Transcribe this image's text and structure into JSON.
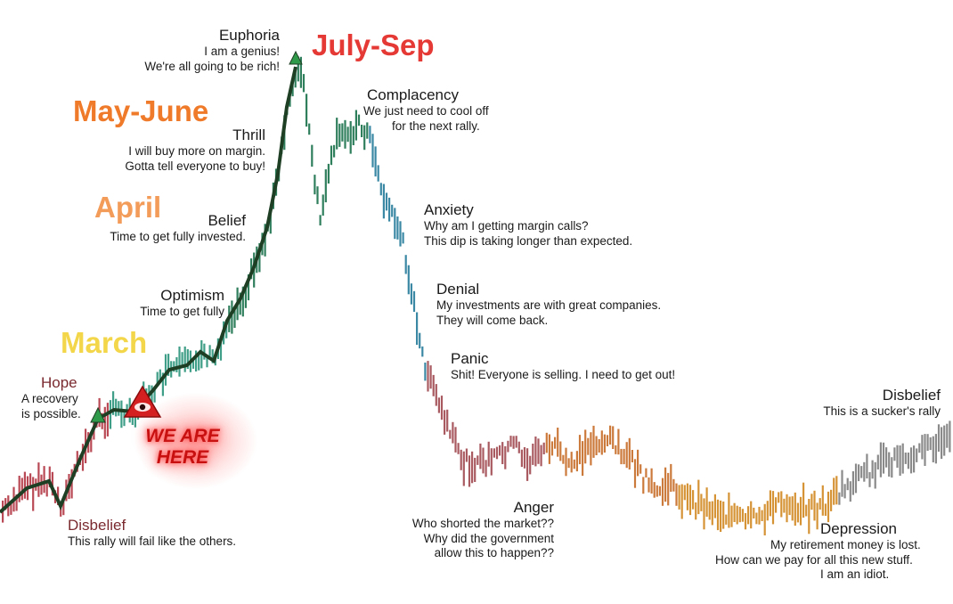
{
  "stages": [
    {
      "id": "hope",
      "name": "Hope",
      "lines": [
        "A recovery",
        "is possible."
      ]
    },
    {
      "id": "disbelief1",
      "name": "Disbelief",
      "lines": [
        "This rally will fail like the others."
      ]
    },
    {
      "id": "optimism",
      "name": "Optimism",
      "lines": [
        "Time to get fully"
      ]
    },
    {
      "id": "belief",
      "name": "Belief",
      "lines": [
        "Time to get fully invested."
      ]
    },
    {
      "id": "thrill",
      "name": "Thrill",
      "lines": [
        "I will buy more on margin.",
        "Gotta tell everyone to buy!"
      ]
    },
    {
      "id": "euphoria",
      "name": "Euphoria",
      "lines": [
        "I am a genius!",
        "We're all going to be rich!"
      ]
    },
    {
      "id": "complacency",
      "name": "Complacency",
      "lines": [
        "We just need to cool off",
        "for the next rally."
      ]
    },
    {
      "id": "anxiety",
      "name": "Anxiety",
      "lines": [
        "Why am I getting margin calls?",
        "This dip is taking longer than expected."
      ]
    },
    {
      "id": "denial",
      "name": "Denial",
      "lines": [
        "My investments are with great companies.",
        "They will come back."
      ]
    },
    {
      "id": "panic",
      "name": "Panic",
      "lines": [
        "Shit! Everyone is selling. I need to get out!"
      ]
    },
    {
      "id": "anger",
      "name": "Anger",
      "lines": [
        "Who shorted the market??",
        "Why did the government",
        "allow this to happen??"
      ]
    },
    {
      "id": "depression",
      "name": "Depression",
      "lines": [
        "My retirement money is lost.",
        "How can we pay for all this new stuff.",
        "I am an idiot."
      ]
    },
    {
      "id": "disbelief2",
      "name": "Disbelief",
      "lines": [
        "This is a sucker's rally"
      ]
    }
  ],
  "months": [
    {
      "id": "march",
      "label": "March",
      "color": "#f3d64a"
    },
    {
      "id": "april",
      "label": "April",
      "color": "#f39c5a"
    },
    {
      "id": "may_june",
      "label": "May-June",
      "color": "#ef7a2a"
    },
    {
      "id": "july_sep",
      "label": "July-Sep",
      "color": "#e53935"
    }
  ],
  "callout": {
    "line1": "WE ARE",
    "line2": "HERE"
  },
  "colors": {
    "segments": [
      "#b94a55",
      "#3f9e87",
      "#2f7e5c",
      "#3a88a4",
      "#a85a60",
      "#cc7a3c",
      "#d69336",
      "#8a8a8a"
    ],
    "trend": "#1f3f25",
    "callout": "#c81010"
  }
}
